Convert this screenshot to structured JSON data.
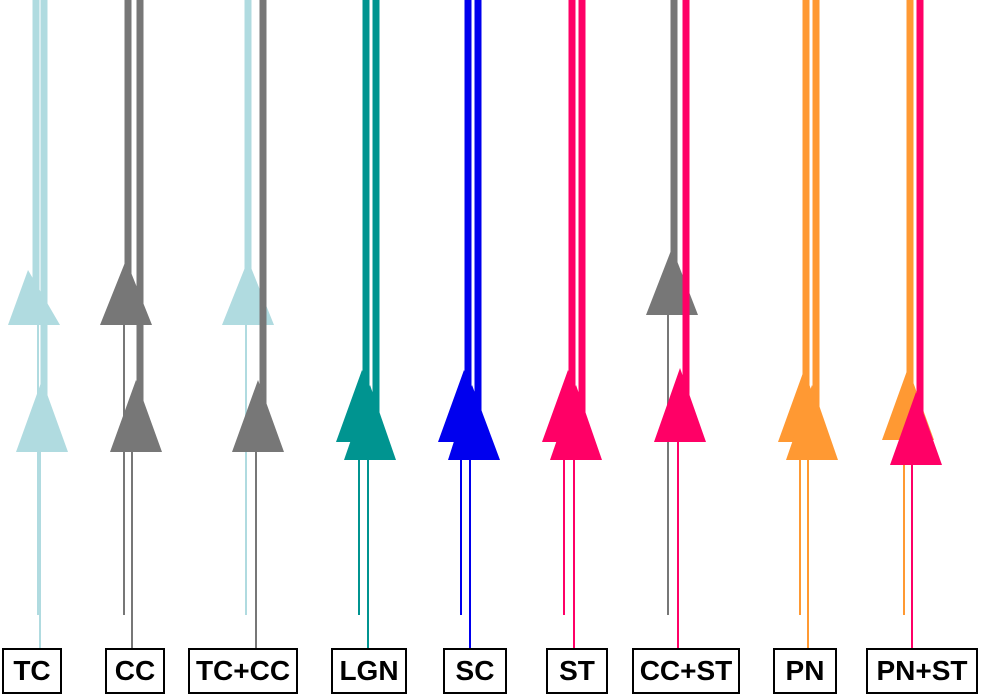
{
  "colors": {
    "light_blue": "#b0dbe0",
    "gray": "#777777",
    "teal": "#009490",
    "blue": "#0000ee",
    "pink": "#ff0066",
    "orange": "#ff9933"
  },
  "groups": [
    {
      "label": "TC",
      "neurons": [
        {
          "color": "light_blue",
          "soma": "upper"
        },
        {
          "color": "light_blue",
          "soma": "lower"
        }
      ]
    },
    {
      "label": "CC",
      "neurons": [
        {
          "color": "gray",
          "soma": "upper"
        },
        {
          "color": "gray",
          "soma": "lower"
        }
      ]
    },
    {
      "label": "TC+CC",
      "neurons": [
        {
          "color": "light_blue",
          "soma": "upper"
        },
        {
          "color": "gray",
          "soma": "lower"
        }
      ]
    },
    {
      "label": "LGN",
      "neurons": [
        {
          "color": "teal",
          "soma": "lower"
        },
        {
          "color": "teal",
          "soma": "lower"
        }
      ]
    },
    {
      "label": "SC",
      "neurons": [
        {
          "color": "blue",
          "soma": "lower"
        },
        {
          "color": "blue",
          "soma": "lower"
        }
      ]
    },
    {
      "label": "ST",
      "neurons": [
        {
          "color": "pink",
          "soma": "lower"
        },
        {
          "color": "pink",
          "soma": "lower"
        }
      ]
    },
    {
      "label": "CC+ST",
      "neurons": [
        {
          "color": "gray",
          "soma": "upper"
        },
        {
          "color": "pink",
          "soma": "lower"
        }
      ]
    },
    {
      "label": "PN",
      "neurons": [
        {
          "color": "orange",
          "soma": "lower"
        },
        {
          "color": "orange",
          "soma": "lower"
        }
      ]
    },
    {
      "label": "PN+ST",
      "neurons": [
        {
          "color": "orange",
          "soma": "lower"
        },
        {
          "color": "pink",
          "soma": "lower"
        }
      ]
    }
  ]
}
